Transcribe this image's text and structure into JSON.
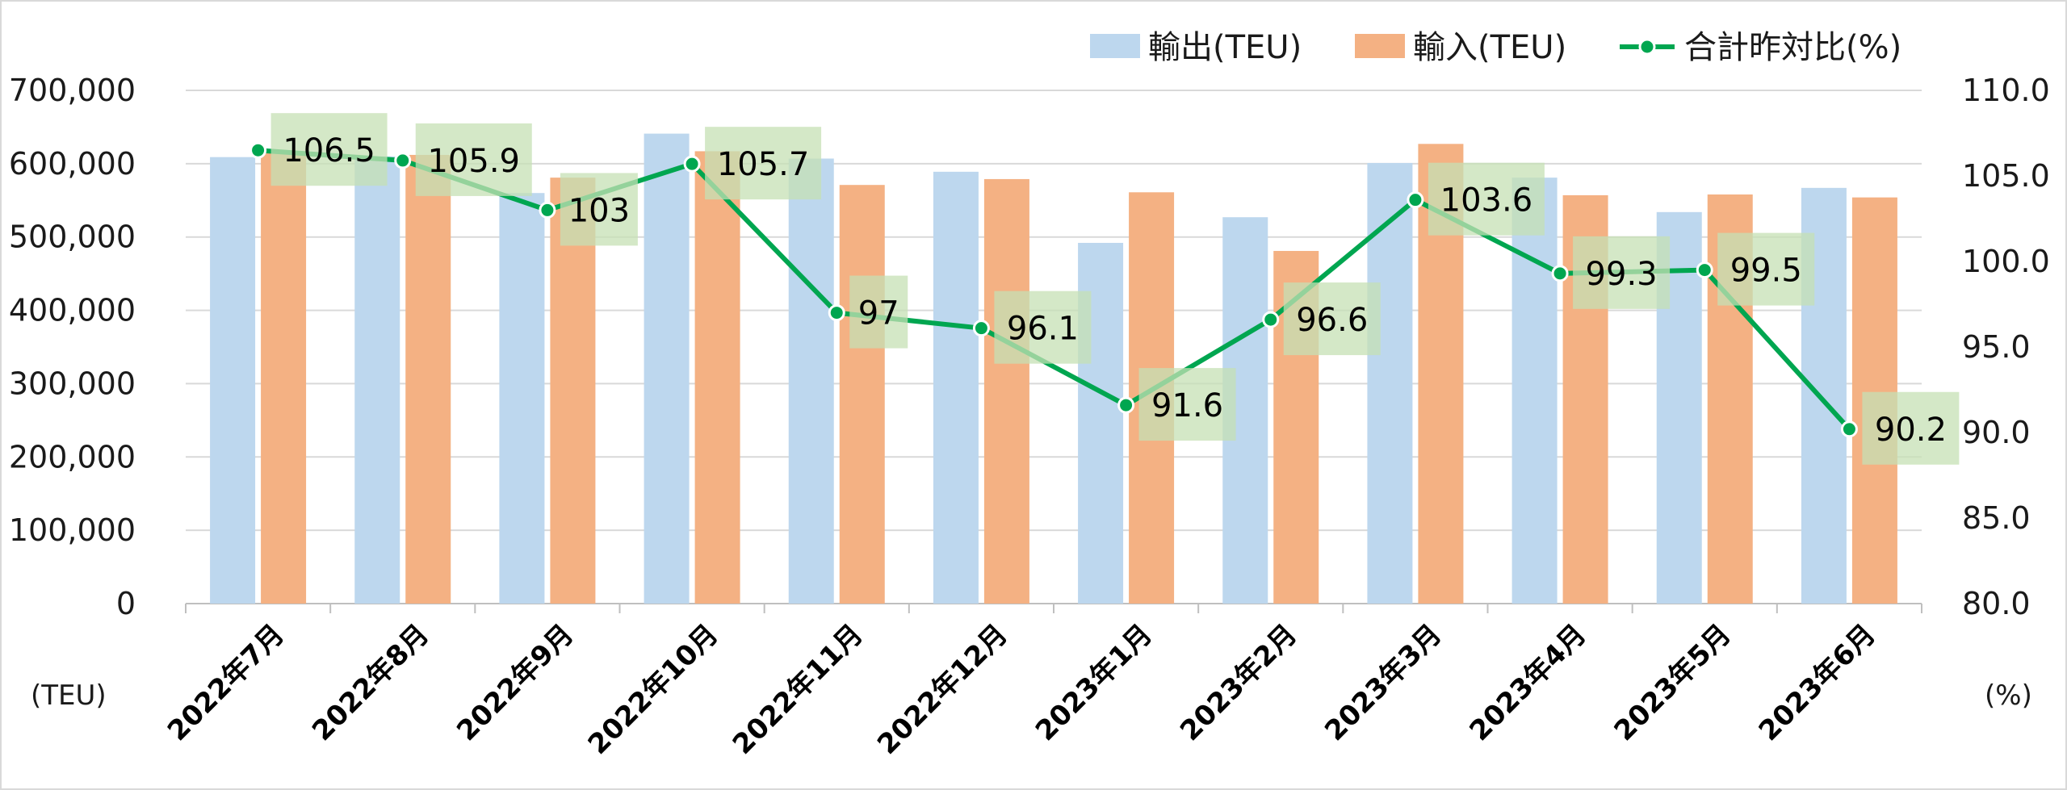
{
  "chart_data": {
    "type": "bar",
    "categories": [
      "2022年7月",
      "2022年8月",
      "2022年9月",
      "2022年10月",
      "2022年11月",
      "2022年12月",
      "2023年1月",
      "2023年2月",
      "2023年3月",
      "2023年4月",
      "2023年5月",
      "2023年6月"
    ],
    "series": [
      {
        "name": "輸出(TEU)",
        "type": "bar",
        "axis": "left",
        "color": "#bdd7ee",
        "values": [
          609000,
          610000,
          560000,
          641000,
          607000,
          589000,
          492000,
          527000,
          601000,
          581000,
          534000,
          567000
        ]
      },
      {
        "name": "輸入(TEU)",
        "type": "bar",
        "axis": "left",
        "color": "#f4b183",
        "values": [
          617000,
          612000,
          581000,
          617000,
          571000,
          579000,
          561000,
          481000,
          627000,
          557000,
          558000,
          554000
        ]
      },
      {
        "name": "合計昨対比(%)",
        "type": "line",
        "axis": "right",
        "color": "#00a650",
        "values": [
          106.5,
          105.9,
          103,
          105.7,
          97,
          96.1,
          91.6,
          96.6,
          103.6,
          99.3,
          99.5,
          90.2
        ],
        "labels": [
          "106.5",
          "105.9",
          "103",
          "105.7",
          "97",
          "96.1",
          "91.6",
          "96.6",
          "103.6",
          "99.3",
          "99.5",
          "90.2"
        ]
      }
    ],
    "y_left": {
      "ylim": [
        0,
        700000
      ],
      "ticks": [
        "0",
        "100,000",
        "200,000",
        "300,000",
        "400,000",
        "500,000",
        "600,000",
        "700,000"
      ],
      "unit": "(TEU)"
    },
    "y_right": {
      "ylim": [
        80,
        110
      ],
      "ticks": [
        "80.0",
        "85.0",
        "90.0",
        "95.0",
        "100.0",
        "105.0",
        "110.0"
      ],
      "unit": "(%)"
    },
    "grid": true,
    "legend_position": "top-right",
    "label_box_color": "#c5e0b4"
  }
}
